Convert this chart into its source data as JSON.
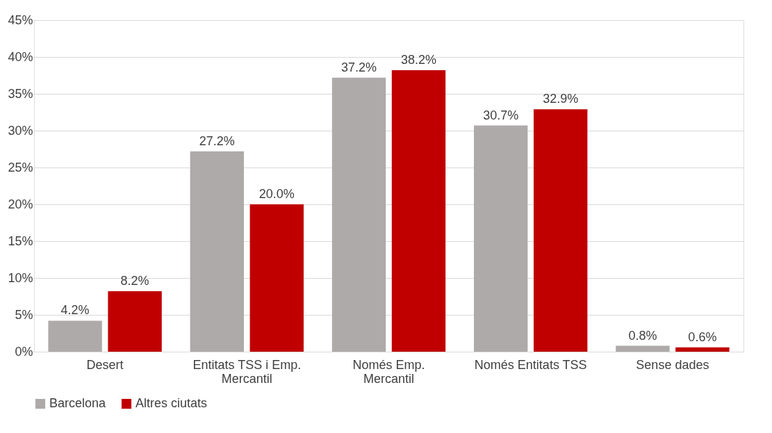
{
  "chart_data": {
    "type": "bar",
    "categories": [
      "Desert",
      "Entitats TSS i Emp. Mercantil",
      "Només Emp. Mercantil",
      "Només Entitats TSS",
      "Sense dades"
    ],
    "series": [
      {
        "name": "Barcelona",
        "color": "#aeaaaa",
        "values": [
          4.2,
          27.2,
          37.2,
          30.7,
          0.8
        ],
        "value_labels": [
          "4.2%",
          "27.2%",
          "37.2%",
          "30.7%",
          "0.8%"
        ]
      },
      {
        "name": "Altres ciutats",
        "color": "#c00000",
        "values": [
          8.2,
          20.0,
          38.2,
          32.9,
          0.6
        ],
        "value_labels": [
          "8.2%",
          "20.0%",
          "38.2%",
          "32.9%",
          "0.6%"
        ]
      }
    ],
    "ylim": [
      0,
      45
    ],
    "yticks": [
      {
        "value": 0,
        "label": "0%"
      },
      {
        "value": 5,
        "label": "5%"
      },
      {
        "value": 10,
        "label": "10%"
      },
      {
        "value": 15,
        "label": "15%"
      },
      {
        "value": 20,
        "label": "20%"
      },
      {
        "value": 25,
        "label": "25%"
      },
      {
        "value": 30,
        "label": "30%"
      },
      {
        "value": 35,
        "label": "35%"
      },
      {
        "value": 40,
        "label": "40%"
      },
      {
        "value": 45,
        "label": "45%"
      }
    ],
    "grid": "y",
    "legend": "bottom"
  }
}
